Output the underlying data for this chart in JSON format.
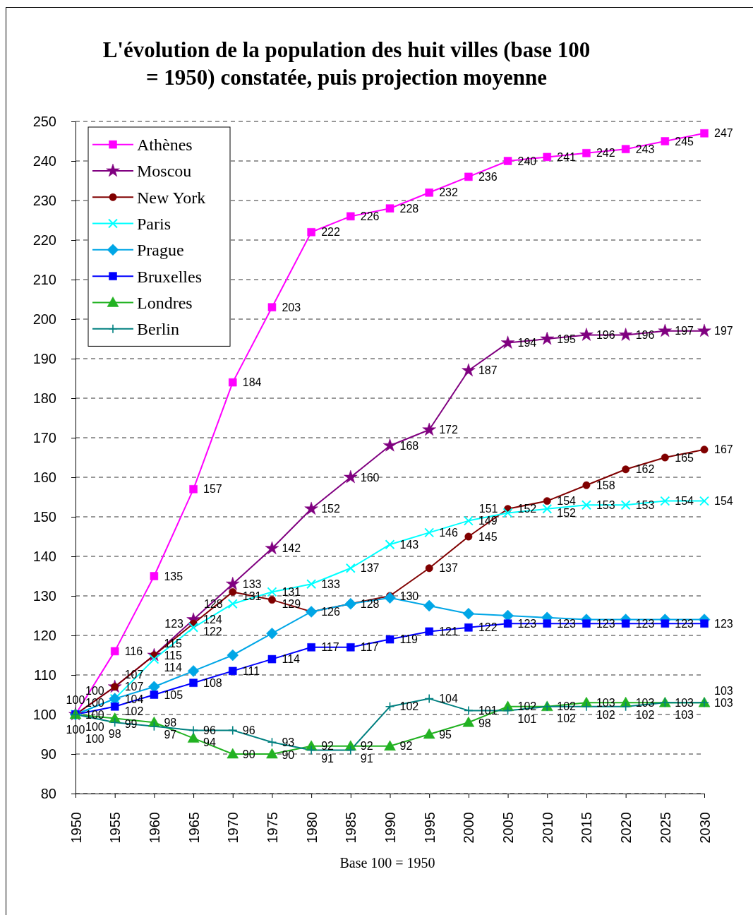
{
  "chart_data": {
    "type": "line",
    "title": "L'évolution de la population des huit villes (base 100 = 1950) constatée, puis projection moyenne",
    "xlabel": "Base 100 = 1950",
    "categories": [
      "1950",
      "1955",
      "1960",
      "1965",
      "1970",
      "1975",
      "1980",
      "1985",
      "1990",
      "1995",
      "2000",
      "2005",
      "2010",
      "2015",
      "2020",
      "2025",
      "2030"
    ],
    "ylim": [
      80,
      250
    ],
    "yticks": [
      80,
      90,
      100,
      110,
      120,
      130,
      140,
      150,
      160,
      170,
      180,
      190,
      200,
      210,
      220,
      230,
      240,
      250
    ],
    "grid": "y",
    "legend": "top left",
    "data_labels": true,
    "series": [
      {
        "name": "Athènes",
        "color": "#ff00ff",
        "marker": "square",
        "values": [
          100,
          116,
          135,
          157,
          184,
          203,
          222,
          226,
          228,
          232,
          236,
          240,
          241,
          242,
          243,
          245,
          247
        ]
      },
      {
        "name": "Moscou",
        "color": "#800080",
        "marker": "star",
        "values": [
          100,
          107,
          115,
          124,
          133,
          142,
          152,
          160,
          168,
          172,
          187,
          194,
          195,
          196,
          196,
          197,
          197
        ]
      },
      {
        "name": "New York",
        "color": "#800000",
        "marker": "circle",
        "values": [
          100,
          107,
          115,
          123,
          131,
          129,
          126,
          128,
          130,
          137,
          145,
          152,
          154,
          158,
          162,
          165,
          167
        ]
      },
      {
        "name": "Paris",
        "color": "#00ffff",
        "marker": "cross",
        "values": [
          100,
          104,
          114,
          122,
          128,
          131,
          133,
          137,
          143,
          146,
          149,
          151,
          152,
          153,
          153,
          154,
          154
        ]
      },
      {
        "name": "Prague",
        "color": "#00a6e6",
        "marker": "diamond",
        "data_labels": false,
        "values": [
          100,
          104,
          107,
          111,
          115,
          120.5,
          126,
          128,
          129.5,
          127.5,
          125.5,
          125,
          124.5,
          124,
          124,
          124,
          124
        ]
      },
      {
        "name": "Bruxelles",
        "color": "#0000ff",
        "marker": "square",
        "values": [
          100,
          102,
          105,
          108,
          111,
          114,
          117,
          117,
          119,
          121,
          122,
          123,
          123,
          123,
          123,
          123,
          123
        ]
      },
      {
        "name": "Londres",
        "color": "#22b222",
        "marker": "triangle",
        "values": [
          100,
          99,
          98,
          94,
          90,
          90,
          92,
          92,
          92,
          95,
          98,
          102,
          102,
          103,
          103,
          103,
          103
        ]
      },
      {
        "name": "Berlin",
        "color": "#008080",
        "marker": "plus",
        "values": [
          100,
          98,
          97,
          96,
          96,
          93,
          91,
          91,
          102,
          104,
          101,
          101,
          102,
          102,
          102,
          103,
          103
        ]
      }
    ]
  }
}
